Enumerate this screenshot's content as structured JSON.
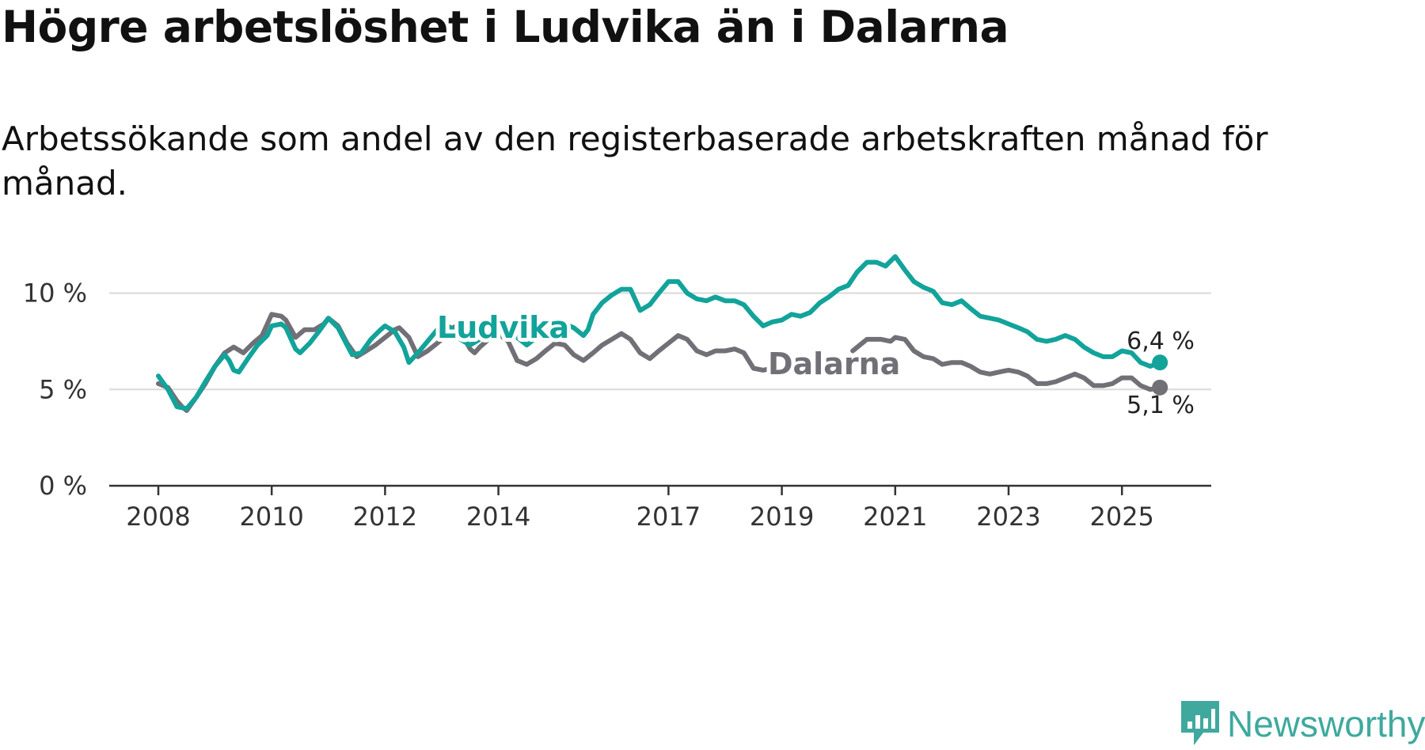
{
  "title": "Högre arbetslöshet i Ludvika än i Dalarna",
  "subtitle": "Arbetssökande som andel av den registerbaserade arbetskraften månad för månad.",
  "brand": {
    "name": "Newsworthy",
    "icon": "newsworthy-logo-icon"
  },
  "colors": {
    "ludvika": "#12a39a",
    "dalarna": "#717077",
    "grid": "#d9d9d9",
    "axis": "#333333"
  },
  "chart_data": {
    "type": "line",
    "title": "Högre arbetslöshet i Ludvika än i Dalarna",
    "xlabel": "",
    "ylabel": "",
    "ylim": [
      0,
      13
    ],
    "xlim": [
      2007.8,
      2026.6
    ],
    "yticks": [
      {
        "value": 0,
        "label": "0 %"
      },
      {
        "value": 5,
        "label": "5 %"
      },
      {
        "value": 10,
        "label": "10 %"
      }
    ],
    "xticks": [
      {
        "value": 2008.0,
        "label": "2008"
      },
      {
        "value": 2010.0,
        "label": "2010"
      },
      {
        "value": 2012.0,
        "label": "2012"
      },
      {
        "value": 2014.0,
        "label": "2014"
      },
      {
        "value": 2017.0,
        "label": "2017"
      },
      {
        "value": 2019.0,
        "label": "2019"
      },
      {
        "value": 2021.0,
        "label": "2021"
      },
      {
        "value": 2023.0,
        "label": "2023"
      },
      {
        "value": 2025.0,
        "label": "2025"
      }
    ],
    "grid": true,
    "legend": "inline labels",
    "series": [
      {
        "name": "Dalarna",
        "end_label": "5,1 %",
        "points": [
          [
            2008.0,
            5.3
          ],
          [
            2008.17,
            5.1
          ],
          [
            2008.33,
            4.4
          ],
          [
            2008.42,
            4.1
          ],
          [
            2008.5,
            3.9
          ],
          [
            2008.67,
            4.6
          ],
          [
            2008.83,
            5.3
          ],
          [
            2009.0,
            6.2
          ],
          [
            2009.17,
            6.9
          ],
          [
            2009.33,
            7.2
          ],
          [
            2009.5,
            6.9
          ],
          [
            2009.67,
            7.4
          ],
          [
            2009.83,
            7.8
          ],
          [
            2010.0,
            8.9
          ],
          [
            2010.17,
            8.8
          ],
          [
            2010.25,
            8.6
          ],
          [
            2010.42,
            7.7
          ],
          [
            2010.58,
            8.1
          ],
          [
            2010.75,
            8.1
          ],
          [
            2010.92,
            8.4
          ],
          [
            2011.0,
            8.7
          ],
          [
            2011.17,
            8.3
          ],
          [
            2011.33,
            7.4
          ],
          [
            2011.5,
            6.7
          ],
          [
            2011.67,
            7.0
          ],
          [
            2011.83,
            7.3
          ],
          [
            2012.0,
            7.7
          ],
          [
            2012.17,
            8.1
          ],
          [
            2012.25,
            8.2
          ],
          [
            2012.42,
            7.7
          ],
          [
            2012.58,
            6.7
          ],
          [
            2012.75,
            7.0
          ],
          [
            2012.92,
            7.4
          ],
          [
            2013.0,
            7.6
          ],
          [
            2013.17,
            8.1
          ],
          [
            2013.25,
            8.3
          ],
          [
            2013.33,
            8.0
          ],
          [
            2013.5,
            7.1
          ],
          [
            2013.58,
            6.9
          ],
          [
            2013.67,
            7.2
          ],
          [
            2013.83,
            7.6
          ],
          [
            2014.0,
            7.9
          ],
          [
            2014.17,
            7.5
          ],
          [
            2014.33,
            6.5
          ],
          [
            2014.5,
            6.3
          ],
          [
            2014.67,
            6.6
          ],
          [
            2014.83,
            7.0
          ],
          [
            2015.0,
            7.4
          ],
          [
            2015.17,
            7.3
          ],
          [
            2015.33,
            6.8
          ],
          [
            2015.5,
            6.5
          ],
          [
            2015.67,
            6.9
          ],
          [
            2015.83,
            7.3
          ],
          [
            2016.0,
            7.6
          ],
          [
            2016.17,
            7.9
          ],
          [
            2016.33,
            7.6
          ],
          [
            2016.5,
            6.9
          ],
          [
            2016.67,
            6.6
          ],
          [
            2016.83,
            7.0
          ],
          [
            2017.0,
            7.4
          ],
          [
            2017.17,
            7.8
          ],
          [
            2017.33,
            7.6
          ],
          [
            2017.5,
            7.0
          ],
          [
            2017.67,
            6.8
          ],
          [
            2017.83,
            7.0
          ],
          [
            2018.0,
            7.0
          ],
          [
            2018.17,
            7.1
          ],
          [
            2018.33,
            6.9
          ],
          [
            2018.5,
            6.1
          ],
          [
            2018.67,
            6.0
          ],
          [
            2018.83,
            6.1
          ],
          [
            2020.25,
            7.0
          ],
          [
            2020.5,
            7.6
          ],
          [
            2020.75,
            7.6
          ],
          [
            2020.92,
            7.5
          ],
          [
            2021.0,
            7.7
          ],
          [
            2021.17,
            7.6
          ],
          [
            2021.33,
            7.0
          ],
          [
            2021.5,
            6.7
          ],
          [
            2021.67,
            6.6
          ],
          [
            2021.83,
            6.3
          ],
          [
            2022.0,
            6.4
          ],
          [
            2022.17,
            6.4
          ],
          [
            2022.33,
            6.2
          ],
          [
            2022.5,
            5.9
          ],
          [
            2022.67,
            5.8
          ],
          [
            2022.83,
            5.9
          ],
          [
            2023.0,
            6.0
          ],
          [
            2023.17,
            5.9
          ],
          [
            2023.33,
            5.7
          ],
          [
            2023.5,
            5.3
          ],
          [
            2023.67,
            5.3
          ],
          [
            2023.83,
            5.4
          ],
          [
            2024.0,
            5.6
          ],
          [
            2024.17,
            5.8
          ],
          [
            2024.33,
            5.6
          ],
          [
            2024.5,
            5.2
          ],
          [
            2024.67,
            5.2
          ],
          [
            2024.83,
            5.3
          ],
          [
            2025.0,
            5.6
          ],
          [
            2025.17,
            5.6
          ],
          [
            2025.33,
            5.2
          ],
          [
            2025.5,
            5.0
          ],
          [
            2025.67,
            5.1
          ]
        ]
      },
      {
        "name": "Ludvika",
        "end_label": "6,4 %",
        "points": [
          [
            2008.0,
            5.7
          ],
          [
            2008.17,
            5.0
          ],
          [
            2008.33,
            4.1
          ],
          [
            2008.5,
            4.0
          ],
          [
            2008.67,
            4.6
          ],
          [
            2008.83,
            5.4
          ],
          [
            2009.0,
            6.2
          ],
          [
            2009.17,
            6.8
          ],
          [
            2009.25,
            6.5
          ],
          [
            2009.33,
            6.0
          ],
          [
            2009.42,
            5.9
          ],
          [
            2009.58,
            6.6
          ],
          [
            2009.75,
            7.3
          ],
          [
            2009.92,
            7.8
          ],
          [
            2010.0,
            8.3
          ],
          [
            2010.17,
            8.4
          ],
          [
            2010.25,
            8.2
          ],
          [
            2010.42,
            7.1
          ],
          [
            2010.5,
            6.9
          ],
          [
            2010.67,
            7.4
          ],
          [
            2010.83,
            8.0
          ],
          [
            2011.0,
            8.7
          ],
          [
            2011.17,
            8.2
          ],
          [
            2011.33,
            7.3
          ],
          [
            2011.42,
            6.8
          ],
          [
            2011.58,
            6.9
          ],
          [
            2011.75,
            7.6
          ],
          [
            2011.92,
            8.1
          ],
          [
            2012.0,
            8.3
          ],
          [
            2012.17,
            8.0
          ],
          [
            2012.33,
            7.2
          ],
          [
            2012.42,
            6.4
          ],
          [
            2012.58,
            6.9
          ],
          [
            2012.75,
            7.5
          ],
          [
            2012.92,
            8.1
          ],
          [
            2013.0,
            8.4
          ],
          [
            2013.17,
            8.2
          ],
          [
            2013.33,
            7.6
          ],
          [
            2013.5,
            7.3
          ],
          [
            2013.67,
            7.6
          ],
          [
            2013.83,
            8.0
          ],
          [
            2014.0,
            8.3
          ],
          [
            2014.17,
            8.3
          ],
          [
            2014.33,
            7.7
          ],
          [
            2014.5,
            7.3
          ],
          [
            2014.67,
            7.7
          ],
          [
            2014.83,
            8.2
          ],
          [
            2015.0,
            8.6
          ],
          [
            2015.17,
            8.4
          ],
          [
            2015.33,
            8.2
          ],
          [
            2015.5,
            7.8
          ],
          [
            2015.58,
            8.1
          ],
          [
            2015.67,
            8.9
          ],
          [
            2015.83,
            9.5
          ],
          [
            2016.0,
            9.9
          ],
          [
            2016.17,
            10.2
          ],
          [
            2016.33,
            10.2
          ],
          [
            2016.5,
            9.1
          ],
          [
            2016.67,
            9.4
          ],
          [
            2016.83,
            10.0
          ],
          [
            2017.0,
            10.6
          ],
          [
            2017.17,
            10.6
          ],
          [
            2017.33,
            10.0
          ],
          [
            2017.5,
            9.7
          ],
          [
            2017.67,
            9.6
          ],
          [
            2017.83,
            9.8
          ],
          [
            2018.0,
            9.6
          ],
          [
            2018.17,
            9.6
          ],
          [
            2018.33,
            9.4
          ],
          [
            2018.5,
            8.8
          ],
          [
            2018.67,
            8.3
          ],
          [
            2018.83,
            8.5
          ],
          [
            2019.0,
            8.6
          ],
          [
            2019.17,
            8.9
          ],
          [
            2019.33,
            8.8
          ],
          [
            2019.5,
            9.0
          ],
          [
            2019.67,
            9.5
          ],
          [
            2019.83,
            9.8
          ],
          [
            2020.0,
            10.2
          ],
          [
            2020.17,
            10.4
          ],
          [
            2020.33,
            11.1
          ],
          [
            2020.5,
            11.6
          ],
          [
            2020.67,
            11.6
          ],
          [
            2020.83,
            11.4
          ],
          [
            2021.0,
            11.9
          ],
          [
            2021.17,
            11.2
          ],
          [
            2021.33,
            10.6
          ],
          [
            2021.5,
            10.3
          ],
          [
            2021.67,
            10.1
          ],
          [
            2021.83,
            9.5
          ],
          [
            2022.0,
            9.4
          ],
          [
            2022.17,
            9.6
          ],
          [
            2022.33,
            9.2
          ],
          [
            2022.5,
            8.8
          ],
          [
            2022.67,
            8.7
          ],
          [
            2022.83,
            8.6
          ],
          [
            2023.0,
            8.4
          ],
          [
            2023.17,
            8.2
          ],
          [
            2023.33,
            8.0
          ],
          [
            2023.5,
            7.6
          ],
          [
            2023.67,
            7.5
          ],
          [
            2023.83,
            7.6
          ],
          [
            2024.0,
            7.8
          ],
          [
            2024.17,
            7.6
          ],
          [
            2024.33,
            7.2
          ],
          [
            2024.5,
            6.9
          ],
          [
            2024.67,
            6.7
          ],
          [
            2024.83,
            6.7
          ],
          [
            2025.0,
            7.0
          ],
          [
            2025.17,
            6.9
          ],
          [
            2025.33,
            6.4
          ],
          [
            2025.5,
            6.2
          ],
          [
            2025.67,
            6.4
          ]
        ]
      }
    ]
  }
}
